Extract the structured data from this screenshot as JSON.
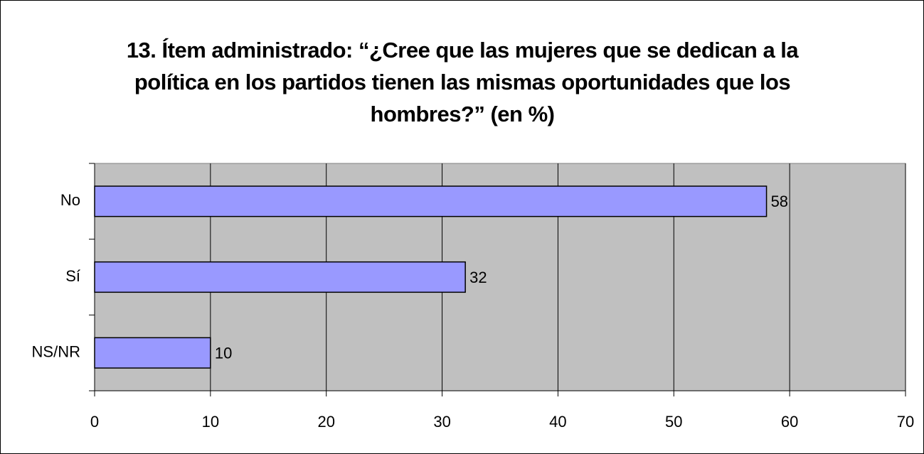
{
  "chart_data": {
    "type": "bar",
    "orientation": "horizontal",
    "title": "13. Ítem administrado: “¿Cree que las mujeres que se dedican a la política en los partidos tienen las mismas oportunidades que los hombres?” (en %)",
    "categories": [
      "No",
      "Sí",
      "NS/NR"
    ],
    "values": [
      58,
      32,
      10
    ],
    "color": "#9999ff",
    "xlim": [
      0,
      70
    ],
    "xticks": [
      0,
      10,
      20,
      30,
      40,
      50,
      60,
      70
    ],
    "grid": true
  }
}
